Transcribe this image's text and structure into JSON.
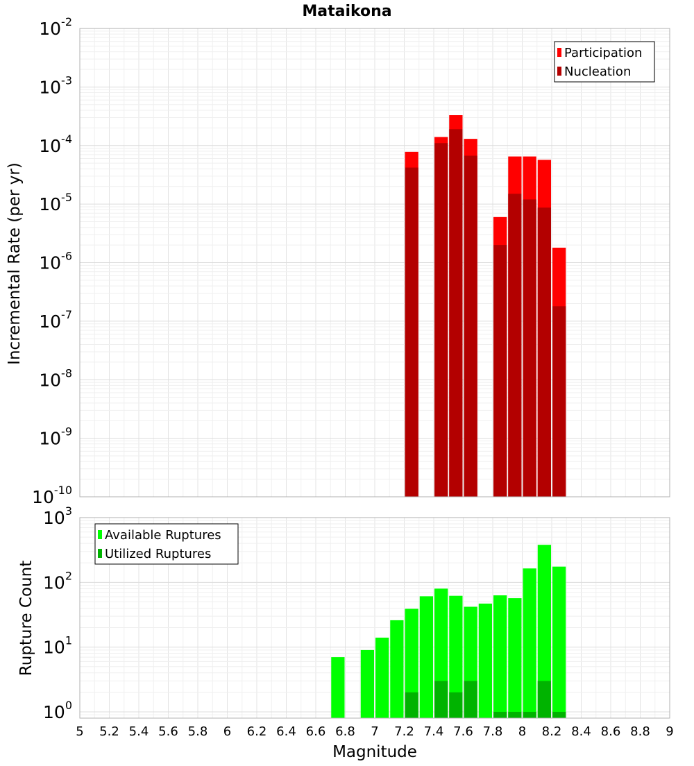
{
  "chart_data": [
    {
      "type": "bar",
      "title": "Mataikona",
      "xlabel": "",
      "ylabel": "Incremental Rate (per yr)",
      "yscale": "log",
      "ylim": [
        1e-10,
        0.01
      ],
      "xlim": [
        5,
        9
      ],
      "grid": true,
      "legend_position": "top-right",
      "bar_width": 0.1,
      "series": [
        {
          "name": "Participation",
          "color": "#ff0000",
          "x": [
            7.25,
            7.45,
            7.55,
            7.65,
            7.85,
            7.95,
            8.05,
            8.15,
            8.25
          ],
          "values": [
            7.8e-05,
            0.00014,
            0.00033,
            0.00013,
            6e-06,
            6.5e-05,
            6.5e-05,
            5.7e-05,
            1.8e-06
          ]
        },
        {
          "name": "Nucleation",
          "color": "#b30000",
          "x": [
            7.25,
            7.45,
            7.55,
            7.65,
            7.85,
            7.95,
            8.05,
            8.15,
            8.25
          ],
          "values": [
            4.2e-05,
            0.00011,
            0.00019,
            6.7e-05,
            2e-06,
            1.5e-05,
            1.2e-05,
            8.7e-06,
            1.8e-07
          ]
        }
      ],
      "y_ticks": [
        {
          "base": "10",
          "exp": "-10",
          "value": 1e-10
        },
        {
          "base": "10",
          "exp": "-9",
          "value": 1e-09
        },
        {
          "base": "10",
          "exp": "-8",
          "value": 1e-08
        },
        {
          "base": "10",
          "exp": "-7",
          "value": 1e-07
        },
        {
          "base": "10",
          "exp": "-6",
          "value": 1e-06
        },
        {
          "base": "10",
          "exp": "-5",
          "value": 1e-05
        },
        {
          "base": "10",
          "exp": "-4",
          "value": 0.0001
        },
        {
          "base": "10",
          "exp": "-3",
          "value": 0.001
        },
        {
          "base": "10",
          "exp": "-2",
          "value": 0.01
        }
      ]
    },
    {
      "type": "bar",
      "title": "",
      "xlabel": "Magnitude",
      "ylabel": "Rupture Count",
      "yscale": "log",
      "ylim": [
        0.8,
        1000
      ],
      "xlim": [
        5,
        9
      ],
      "grid": true,
      "legend_position": "top-left",
      "bar_width": 0.1,
      "series": [
        {
          "name": "Available Ruptures",
          "color": "#00ff00",
          "x": [
            6.75,
            6.95,
            7.05,
            7.15,
            7.25,
            7.35,
            7.45,
            7.55,
            7.65,
            7.75,
            7.85,
            7.95,
            8.05,
            8.15,
            8.25
          ],
          "values": [
            7,
            9,
            14,
            26,
            39,
            61,
            80,
            62,
            42,
            47,
            63,
            57,
            164,
            380,
            175
          ]
        },
        {
          "name": "Utilized Ruptures",
          "color": "#00b300",
          "x": [
            7.25,
            7.45,
            7.55,
            7.65,
            7.85,
            7.95,
            8.05,
            8.15,
            8.25
          ],
          "values": [
            2,
            3,
            2,
            3,
            1,
            1,
            1,
            3,
            1
          ]
        }
      ],
      "x_ticks": [
        "5",
        "5.2",
        "5.4",
        "5.6",
        "5.8",
        "6",
        "6.2",
        "6.4",
        "6.6",
        "6.8",
        "7",
        "7.2",
        "7.4",
        "7.6",
        "7.8",
        "8",
        "8.2",
        "8.4",
        "8.6",
        "8.8",
        "9"
      ],
      "y_ticks": [
        {
          "base": "10",
          "exp": "0",
          "value": 1
        },
        {
          "base": "10",
          "exp": "1",
          "value": 10
        },
        {
          "base": "10",
          "exp": "2",
          "value": 100
        },
        {
          "base": "10",
          "exp": "3",
          "value": 1000
        }
      ]
    }
  ]
}
